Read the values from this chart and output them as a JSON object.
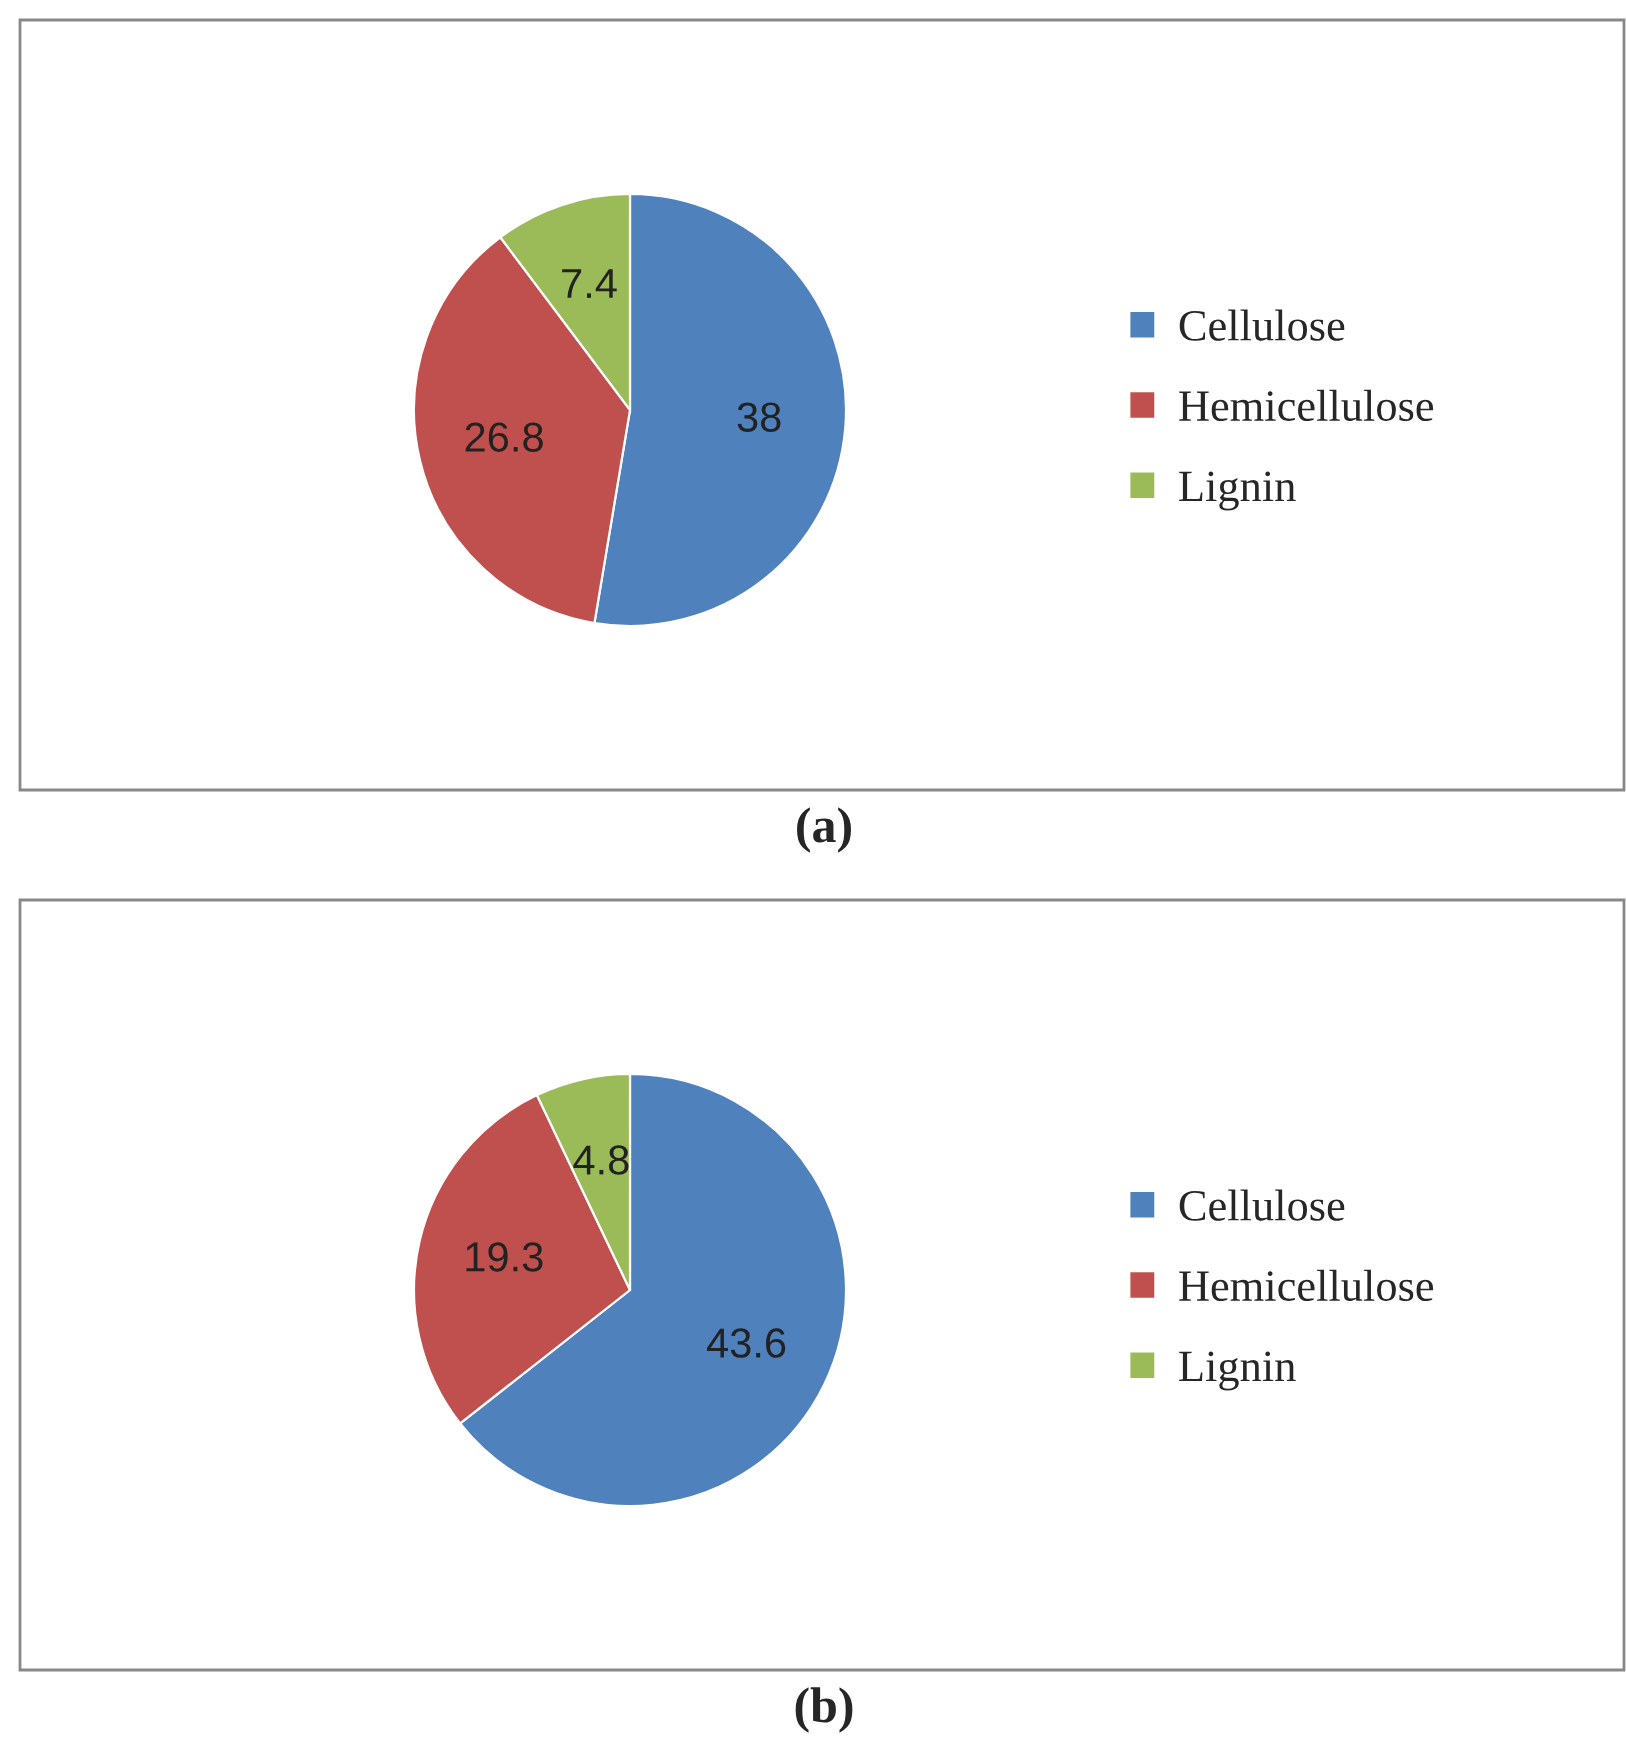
{
  "chart_data": [
    {
      "type": "pie",
      "categories": [
        "Cellulose",
        "Hemicellulose",
        "Lignin"
      ],
      "values": [
        38,
        26.8,
        7.4
      ],
      "colors": [
        "#4f81bd",
        "#c0504d",
        "#9bbb59"
      ],
      "data_labels": true,
      "legend": "right",
      "annotations": [
        "(a)"
      ]
    },
    {
      "type": "pie",
      "categories": [
        "Cellulose",
        "Hemicellulose",
        "Lignin"
      ],
      "values": [
        43.6,
        19.3,
        4.8
      ],
      "colors": [
        "#4f81bd",
        "#c0504d",
        "#9bbb59"
      ],
      "data_labels": true,
      "legend": "right",
      "annotations": [
        "(b)"
      ]
    }
  ]
}
